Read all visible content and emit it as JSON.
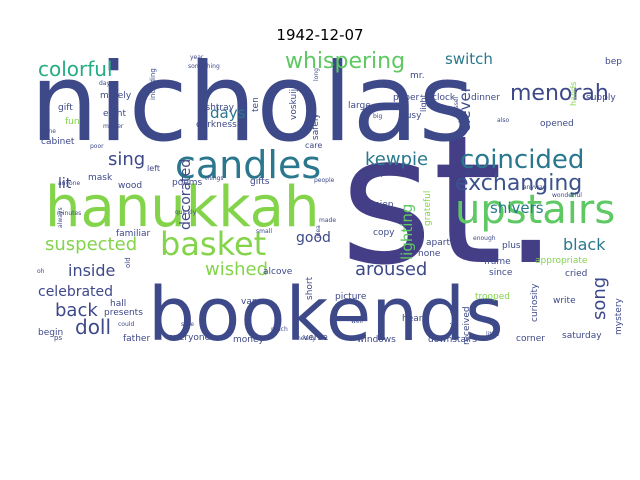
{
  "title": "1942-12-07",
  "palette": {
    "dark_purple": "#443983",
    "indigo": "#3b528b",
    "teal": "#2c728e",
    "teal2": "#21918c",
    "green": "#28ae80",
    "lime": "#5ec962",
    "yellowgreen": "#addc30",
    "lightgreen": "#86d549"
  },
  "words": [
    {
      "text": "st.",
      "color": "#433e85"
    },
    {
      "text": "nicholas",
      "color": "#3e4989"
    },
    {
      "text": "bookends",
      "color": "#3e4989"
    },
    {
      "text": "hanukkah",
      "color": "#84d44b"
    },
    {
      "text": "candles",
      "color": "#2a778e"
    },
    {
      "text": "upstairs",
      "color": "#5ec962"
    },
    {
      "text": "basket",
      "color": "#84d44b"
    },
    {
      "text": "coincided",
      "color": "#2a788e"
    },
    {
      "text": "exchanging",
      "color": "#3b528b"
    },
    {
      "text": "whispering",
      "color": "#5ec962"
    },
    {
      "text": "menorah",
      "color": "#3e4989"
    },
    {
      "text": "colorful",
      "color": "#25ac82"
    },
    {
      "text": "kewpie",
      "color": "#2a788e"
    },
    {
      "text": "suspected",
      "color": "#84d44b"
    },
    {
      "text": "aroused",
      "color": "#3e4989"
    },
    {
      "text": "shivers",
      "color": "#2a788e"
    },
    {
      "text": "sing",
      "color": "#3e4989"
    },
    {
      "text": "black",
      "color": "#2a788e"
    },
    {
      "text": "wished",
      "color": "#84d44b"
    },
    {
      "text": "inside",
      "color": "#3e4989"
    },
    {
      "text": "back",
      "color": "#3e4989"
    },
    {
      "text": "doll",
      "color": "#3e4989"
    },
    {
      "text": "song",
      "color": "#3e4989"
    },
    {
      "text": "celebrated",
      "color": "#3e4989"
    },
    {
      "text": "lighting",
      "color": "#5ec962"
    },
    {
      "text": "clever",
      "color": "#3e4989"
    },
    {
      "text": "switch",
      "color": "#2a788e"
    },
    {
      "text": "days",
      "color": "#2a788e"
    },
    {
      "text": "decorated",
      "color": "#3e4989"
    },
    {
      "text": "good",
      "color": "#3e4989"
    },
    {
      "text": "lit",
      "color": "#3e4989"
    },
    {
      "text": "bep",
      "color": "#3e4989"
    },
    {
      "text": "supply",
      "color": "#3e4989"
    },
    {
      "text": "mr.",
      "color": "#3e4989"
    },
    {
      "text": "clock",
      "color": "#3e4989"
    },
    {
      "text": "ten",
      "color": "#3e4989"
    },
    {
      "text": "gift",
      "color": "#3e4989"
    },
    {
      "text": "fun",
      "color": "#84d44b"
    },
    {
      "text": "merely",
      "color": "#3e4989"
    },
    {
      "text": "eight",
      "color": "#3e4989"
    },
    {
      "text": "ashtray",
      "color": "#3e4989"
    },
    {
      "text": "darkness",
      "color": "#3e4989"
    },
    {
      "text": "voskuijl",
      "color": "#3e4989"
    },
    {
      "text": "safely",
      "color": "#3e4989"
    },
    {
      "text": "large",
      "color": "#3e4989"
    },
    {
      "text": "paper",
      "color": "#3e4989"
    },
    {
      "text": "busy",
      "color": "#3e4989"
    },
    {
      "text": "dinner",
      "color": "#3e4989"
    },
    {
      "text": "opened",
      "color": "#3e4989"
    },
    {
      "text": "apart",
      "color": "#3e4989"
    },
    {
      "text": "cabinet",
      "color": "#3e4989"
    },
    {
      "text": "familiar",
      "color": "#3e4989"
    },
    {
      "text": "mask",
      "color": "#3e4989"
    },
    {
      "text": "wood",
      "color": "#3e4989"
    },
    {
      "text": "poems",
      "color": "#3e4989"
    },
    {
      "text": "gifts",
      "color": "#3e4989"
    },
    {
      "text": "pitch",
      "color": "#3e4989"
    },
    {
      "text": "miep",
      "color": "#3e4989"
    },
    {
      "text": "copy",
      "color": "#3e4989"
    },
    {
      "text": "none",
      "color": "#3e4989"
    },
    {
      "text": "plus",
      "color": "#3e4989"
    },
    {
      "text": "since",
      "color": "#3e4989"
    },
    {
      "text": "cried",
      "color": "#3e4989"
    },
    {
      "text": "frame",
      "color": "#3e4989"
    },
    {
      "text": "appropriate",
      "color": "#84d44b"
    },
    {
      "text": "alcove",
      "color": "#3e4989"
    },
    {
      "text": "short",
      "color": "#3e4989"
    },
    {
      "text": "picture",
      "color": "#3e4989"
    },
    {
      "text": "trooped",
      "color": "#84d44b"
    },
    {
      "text": "write",
      "color": "#3e4989"
    },
    {
      "text": "van",
      "color": "#3e4989"
    },
    {
      "text": "hall",
      "color": "#3e4989"
    },
    {
      "text": "presents",
      "color": "#3e4989"
    },
    {
      "text": "verse",
      "color": "#3e4989"
    },
    {
      "text": "heard",
      "color": "#3e4989"
    },
    {
      "text": "kinds",
      "color": "#3e4989"
    },
    {
      "text": "received",
      "color": "#3e4989"
    },
    {
      "text": "curiosity",
      "color": "#3e4989"
    },
    {
      "text": "mystery",
      "color": "#3e4989"
    },
    {
      "text": "begin",
      "color": "#3e4989"
    },
    {
      "text": "father",
      "color": "#3e4989"
    },
    {
      "text": "everyone",
      "color": "#3e4989"
    },
    {
      "text": "money",
      "color": "#3e4989"
    },
    {
      "text": "windows",
      "color": "#3e4989"
    },
    {
      "text": "downstairs",
      "color": "#3e4989"
    },
    {
      "text": "corner",
      "color": "#3e4989"
    },
    {
      "text": "saturday",
      "color": "#3e4989"
    },
    {
      "text": "grateful",
      "color": "#84d44b"
    },
    {
      "text": "care",
      "color": "#3e4989"
    },
    {
      "text": "light",
      "color": "#3e4989"
    },
    {
      "text": "hands",
      "color": "#84d44b"
    },
    {
      "text": "year",
      "color": "#3e4989"
    },
    {
      "text": "matter",
      "color": "#3e4989"
    },
    {
      "text": "something",
      "color": "#3e4989"
    },
    {
      "text": "day",
      "color": "#3e4989"
    },
    {
      "text": "dussel",
      "color": "#3e4989"
    },
    {
      "text": "big",
      "color": "#3e4989"
    },
    {
      "text": "also",
      "color": "#3e4989"
    },
    {
      "text": "taken",
      "color": "#3e4989"
    },
    {
      "text": "anyway",
      "color": "#3e4989"
    },
    {
      "text": "wonderful",
      "color": "#3e4989"
    },
    {
      "text": "people",
      "color": "#3e4989"
    },
    {
      "text": "enough",
      "color": "#3e4989"
    },
    {
      "text": "anyone",
      "color": "#3e4989"
    },
    {
      "text": "always",
      "color": "#3e4989"
    },
    {
      "text": "minutes",
      "color": "#3e4989"
    },
    {
      "text": "much",
      "color": "#3e4989"
    },
    {
      "text": "well",
      "color": "#3e4989"
    },
    {
      "text": "little",
      "color": "#3e4989"
    },
    {
      "text": "could",
      "color": "#3e4989"
    },
    {
      "text": "sure",
      "color": "#3e4989"
    },
    {
      "text": "quickly",
      "color": "#3e4989"
    },
    {
      "text": "small",
      "color": "#3e4989"
    },
    {
      "text": "made",
      "color": "#3e4989"
    },
    {
      "text": "idea",
      "color": "#3e4989"
    },
    {
      "text": "old",
      "color": "#3e4989"
    },
    {
      "text": "left",
      "color": "#3e4989"
    },
    {
      "text": "oh",
      "color": "#3e4989"
    },
    {
      "text": "ps",
      "color": "#3e4989"
    },
    {
      "text": "done",
      "color": "#3e4989"
    },
    {
      "text": "nearly",
      "color": "#3e4989"
    },
    {
      "text": "things",
      "color": "#3e4989"
    },
    {
      "text": "long",
      "color": "#3e4989"
    },
    {
      "text": "including",
      "color": "#3e4989"
    },
    {
      "text": "poor",
      "color": "#3e4989"
    }
  ]
}
